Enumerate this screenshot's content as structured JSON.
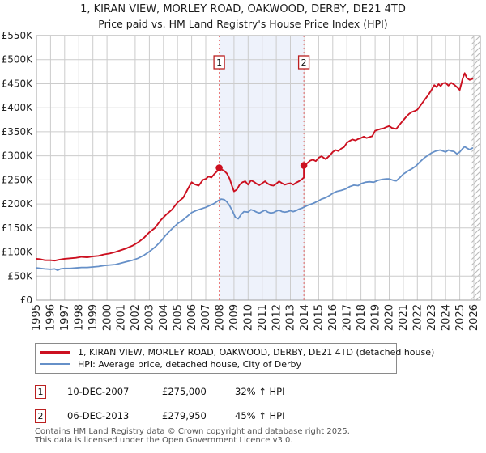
{
  "title": {
    "line1": "1, KIRAN VIEW, MORLEY ROAD, OAKWOOD, DERBY, DE21 4TD",
    "line2": "Price paid vs. HM Land Registry's House Price Index (HPI)"
  },
  "colors": {
    "property": "#cc1020",
    "hpi": "#6690c8",
    "shade": "#eef2fb",
    "dashed": "#e87070",
    "grid": "#cccccc",
    "border": "#a0a0a0",
    "marker_box_border": "#bb2020",
    "hatch": "#b8b8b8",
    "tick_text": "#222222"
  },
  "chart_data": {
    "type": "line",
    "title": "1, KIRAN VIEW, MORLEY ROAD, OAKWOOD, DERBY, DE21 4TD",
    "subtitle": "Price paid vs. HM Land Registry's House Price Index (HPI)",
    "grid": true,
    "xlim": [
      1995,
      2026.46
    ],
    "ylim_k": [
      0,
      550
    ],
    "y_tick_step_k": 50,
    "y_tick_labels": [
      "£0",
      "£50K",
      "£100K",
      "£150K",
      "£200K",
      "£250K",
      "£300K",
      "£350K",
      "£400K",
      "£450K",
      "£500K",
      "£550K"
    ],
    "x_tick_labels": [
      "1995",
      "1996",
      "1997",
      "1998",
      "1999",
      "2000",
      "2001",
      "2002",
      "2003",
      "2004",
      "2005",
      "2006",
      "2007",
      "2008",
      "2009",
      "2010",
      "2011",
      "2012",
      "2013",
      "2014",
      "2015",
      "2016",
      "2017",
      "2018",
      "2019",
      "2020",
      "2021",
      "2022",
      "2023",
      "2024",
      "2025",
      "2026"
    ],
    "future_hatch_start": 2025.85,
    "sales": [
      {
        "label": "1",
        "year": 2007.95,
        "price_k": 275
      },
      {
        "label": "2",
        "year": 2013.95,
        "price_k": 280
      }
    ],
    "series": [
      {
        "name": "1, KIRAN VIEW, MORLEY ROAD, OAKWOOD, DERBY, DE21 4TD (detached house)",
        "color": "#cc1020",
        "points": [
          [
            1995.0,
            86
          ],
          [
            1995.3,
            85
          ],
          [
            1995.6,
            83
          ],
          [
            1996.0,
            83
          ],
          [
            1996.3,
            82
          ],
          [
            1996.6,
            84
          ],
          [
            1997.0,
            86
          ],
          [
            1997.4,
            87
          ],
          [
            1997.8,
            88
          ],
          [
            1998.2,
            90
          ],
          [
            1998.6,
            89
          ],
          [
            1999.0,
            91
          ],
          [
            1999.4,
            92
          ],
          [
            1999.8,
            95
          ],
          [
            2000.2,
            97
          ],
          [
            2000.6,
            100
          ],
          [
            2001.0,
            104
          ],
          [
            2001.4,
            108
          ],
          [
            2001.8,
            113
          ],
          [
            2002.2,
            120
          ],
          [
            2002.6,
            129
          ],
          [
            2003.0,
            141
          ],
          [
            2003.4,
            150
          ],
          [
            2003.8,
            166
          ],
          [
            2004.2,
            178
          ],
          [
            2004.6,
            188
          ],
          [
            2005.0,
            203
          ],
          [
            2005.4,
            213
          ],
          [
            2005.8,
            235
          ],
          [
            2006.0,
            245
          ],
          [
            2006.2,
            241
          ],
          [
            2006.5,
            238
          ],
          [
            2006.8,
            250
          ],
          [
            2007.0,
            252
          ],
          [
            2007.2,
            257
          ],
          [
            2007.4,
            255
          ],
          [
            2007.6,
            262
          ],
          [
            2007.8,
            268
          ],
          [
            2007.95,
            275
          ],
          [
            2008.1,
            272
          ],
          [
            2008.3,
            269
          ],
          [
            2008.5,
            263
          ],
          [
            2008.7,
            252
          ],
          [
            2008.85,
            238
          ],
          [
            2009.0,
            226
          ],
          [
            2009.2,
            230
          ],
          [
            2009.4,
            240
          ],
          [
            2009.6,
            245
          ],
          [
            2009.8,
            247
          ],
          [
            2010.0,
            240
          ],
          [
            2010.2,
            249
          ],
          [
            2010.4,
            246
          ],
          [
            2010.6,
            242
          ],
          [
            2010.8,
            239
          ],
          [
            2011.0,
            243
          ],
          [
            2011.2,
            247
          ],
          [
            2011.4,
            242
          ],
          [
            2011.6,
            239
          ],
          [
            2011.8,
            238
          ],
          [
            2012.0,
            242
          ],
          [
            2012.2,
            247
          ],
          [
            2012.4,
            243
          ],
          [
            2012.6,
            240
          ],
          [
            2012.8,
            242
          ],
          [
            2013.0,
            243
          ],
          [
            2013.2,
            240
          ],
          [
            2013.4,
            244
          ],
          [
            2013.6,
            247
          ],
          [
            2013.8,
            251
          ],
          [
            2013.95,
            255
          ],
          [
            2013.95,
            280
          ],
          [
            2014.2,
            285
          ],
          [
            2014.4,
            290
          ],
          [
            2014.6,
            292
          ],
          [
            2014.8,
            289
          ],
          [
            2015.0,
            296
          ],
          [
            2015.2,
            299
          ],
          [
            2015.5,
            293
          ],
          [
            2015.8,
            301
          ],
          [
            2016.0,
            308
          ],
          [
            2016.2,
            312
          ],
          [
            2016.4,
            310
          ],
          [
            2016.6,
            315
          ],
          [
            2016.8,
            318
          ],
          [
            2017.0,
            327
          ],
          [
            2017.2,
            331
          ],
          [
            2017.4,
            334
          ],
          [
            2017.6,
            332
          ],
          [
            2017.8,
            335
          ],
          [
            2018.0,
            337
          ],
          [
            2018.2,
            340
          ],
          [
            2018.4,
            337
          ],
          [
            2018.6,
            339
          ],
          [
            2018.8,
            341
          ],
          [
            2019.0,
            352
          ],
          [
            2019.2,
            354
          ],
          [
            2019.4,
            356
          ],
          [
            2019.6,
            357
          ],
          [
            2019.8,
            360
          ],
          [
            2020.0,
            362
          ],
          [
            2020.2,
            358
          ],
          [
            2020.5,
            356
          ],
          [
            2020.8,
            367
          ],
          [
            2021.0,
            374
          ],
          [
            2021.2,
            381
          ],
          [
            2021.4,
            387
          ],
          [
            2021.6,
            391
          ],
          [
            2021.8,
            393
          ],
          [
            2022.0,
            396
          ],
          [
            2022.2,
            404
          ],
          [
            2022.4,
            412
          ],
          [
            2022.6,
            420
          ],
          [
            2022.8,
            428
          ],
          [
            2023.0,
            437
          ],
          [
            2023.2,
            447
          ],
          [
            2023.35,
            443
          ],
          [
            2023.5,
            449
          ],
          [
            2023.65,
            445
          ],
          [
            2023.8,
            451
          ],
          [
            2024.0,
            452
          ],
          [
            2024.2,
            446
          ],
          [
            2024.4,
            452
          ],
          [
            2024.6,
            448
          ],
          [
            2024.8,
            443
          ],
          [
            2025.0,
            437
          ],
          [
            2025.2,
            460
          ],
          [
            2025.35,
            472
          ],
          [
            2025.5,
            462
          ],
          [
            2025.7,
            458
          ],
          [
            2025.9,
            460
          ]
        ]
      },
      {
        "name": "HPI: Average price, detached house, City of Derby",
        "color": "#6690c8",
        "points": [
          [
            1995.0,
            67
          ],
          [
            1995.3,
            66
          ],
          [
            1995.6,
            65
          ],
          [
            1996.0,
            64
          ],
          [
            1996.3,
            65
          ],
          [
            1996.5,
            62
          ],
          [
            1996.7,
            65
          ],
          [
            1997.0,
            66
          ],
          [
            1997.4,
            66
          ],
          [
            1997.8,
            67
          ],
          [
            1998.2,
            68
          ],
          [
            1998.6,
            68
          ],
          [
            1999.0,
            69
          ],
          [
            1999.4,
            70
          ],
          [
            1999.8,
            72
          ],
          [
            2000.2,
            73
          ],
          [
            2000.6,
            74
          ],
          [
            2001.0,
            77
          ],
          [
            2001.4,
            80
          ],
          [
            2001.8,
            83
          ],
          [
            2002.2,
            87
          ],
          [
            2002.6,
            93
          ],
          [
            2003.0,
            101
          ],
          [
            2003.4,
            110
          ],
          [
            2003.8,
            122
          ],
          [
            2004.2,
            136
          ],
          [
            2004.6,
            148
          ],
          [
            2005.0,
            159
          ],
          [
            2005.4,
            167
          ],
          [
            2005.8,
            177
          ],
          [
            2006.0,
            182
          ],
          [
            2006.3,
            186
          ],
          [
            2006.6,
            189
          ],
          [
            2007.0,
            193
          ],
          [
            2007.3,
            197
          ],
          [
            2007.6,
            201
          ],
          [
            2007.9,
            207
          ],
          [
            2008.1,
            210
          ],
          [
            2008.3,
            209
          ],
          [
            2008.5,
            204
          ],
          [
            2008.7,
            196
          ],
          [
            2008.9,
            185
          ],
          [
            2009.1,
            172
          ],
          [
            2009.3,
            169
          ],
          [
            2009.5,
            178
          ],
          [
            2009.7,
            184
          ],
          [
            2010.0,
            183
          ],
          [
            2010.2,
            188
          ],
          [
            2010.4,
            186
          ],
          [
            2010.6,
            183
          ],
          [
            2010.8,
            181
          ],
          [
            2011.0,
            184
          ],
          [
            2011.2,
            187
          ],
          [
            2011.4,
            183
          ],
          [
            2011.6,
            181
          ],
          [
            2011.8,
            182
          ],
          [
            2012.0,
            185
          ],
          [
            2012.2,
            187
          ],
          [
            2012.4,
            184
          ],
          [
            2012.6,
            183
          ],
          [
            2012.8,
            184
          ],
          [
            2013.0,
            186
          ],
          [
            2013.2,
            184
          ],
          [
            2013.4,
            186
          ],
          [
            2013.6,
            189
          ],
          [
            2013.8,
            191
          ],
          [
            2014.0,
            194
          ],
          [
            2014.3,
            198
          ],
          [
            2014.6,
            201
          ],
          [
            2014.9,
            205
          ],
          [
            2015.2,
            210
          ],
          [
            2015.5,
            213
          ],
          [
            2015.8,
            218
          ],
          [
            2016.0,
            222
          ],
          [
            2016.3,
            226
          ],
          [
            2016.6,
            228
          ],
          [
            2016.9,
            231
          ],
          [
            2017.2,
            236
          ],
          [
            2017.5,
            239
          ],
          [
            2017.8,
            238
          ],
          [
            2018.0,
            242
          ],
          [
            2018.3,
            245
          ],
          [
            2018.6,
            246
          ],
          [
            2018.9,
            245
          ],
          [
            2019.2,
            249
          ],
          [
            2019.5,
            251
          ],
          [
            2019.8,
            252
          ],
          [
            2020.0,
            252
          ],
          [
            2020.3,
            249
          ],
          [
            2020.5,
            248
          ],
          [
            2020.8,
            256
          ],
          [
            2021.0,
            262
          ],
          [
            2021.3,
            268
          ],
          [
            2021.6,
            273
          ],
          [
            2021.9,
            279
          ],
          [
            2022.2,
            288
          ],
          [
            2022.5,
            296
          ],
          [
            2022.8,
            302
          ],
          [
            2023.0,
            306
          ],
          [
            2023.3,
            310
          ],
          [
            2023.6,
            312
          ],
          [
            2023.8,
            310
          ],
          [
            2024.0,
            308
          ],
          [
            2024.2,
            312
          ],
          [
            2024.4,
            310
          ],
          [
            2024.6,
            309
          ],
          [
            2024.8,
            304
          ],
          [
            2025.0,
            308
          ],
          [
            2025.2,
            315
          ],
          [
            2025.35,
            319
          ],
          [
            2025.5,
            316
          ],
          [
            2025.7,
            313
          ],
          [
            2025.9,
            316
          ]
        ]
      }
    ]
  },
  "legend": {
    "items": [
      {
        "label": "1, KIRAN VIEW, MORLEY ROAD, OAKWOOD, DERBY, DE21 4TD (detached house)",
        "color": "#cc1020"
      },
      {
        "label": "HPI: Average price, detached house, City of Derby",
        "color": "#6690c8"
      }
    ]
  },
  "transactions": [
    {
      "num": "1",
      "date": "10-DEC-2007",
      "price": "£275,000",
      "vs_hpi": "32% ↑ HPI"
    },
    {
      "num": "2",
      "date": "06-DEC-2013",
      "price": "£279,950",
      "vs_hpi": "45% ↑ HPI"
    }
  ],
  "footer": {
    "line1": "Contains HM Land Registry data © Crown copyright and database right 2025.",
    "line2": "This data is licensed under the Open Government Licence v3.0."
  }
}
